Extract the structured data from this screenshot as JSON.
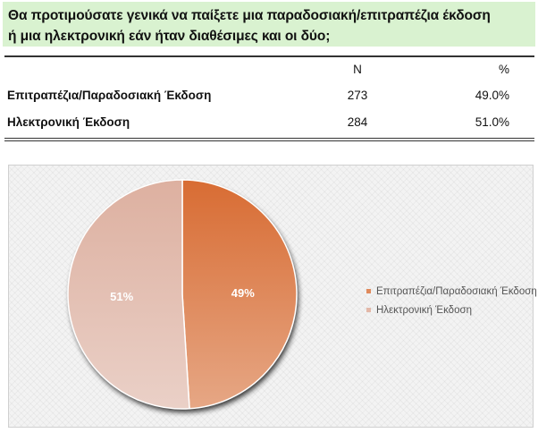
{
  "question": {
    "line1": "Θα προτιμούσατε γενικά να παίξετε μια παραδοσιακή/επιτραπέζια έκδοση",
    "line2": "ή μια ηλεκτρονική εάν ήταν διαθέσιμες και οι δύο;"
  },
  "table": {
    "headers": {
      "n": "N",
      "pct": "%"
    },
    "rows": [
      {
        "label": "Επιτραπέζια/Παραδοσιακή Έκδοση",
        "n": "273",
        "pct": "49.0%"
      },
      {
        "label": "Ηλεκτρονική Έκδοση",
        "n": "284",
        "pct": "51.0%"
      }
    ]
  },
  "chart_data": {
    "type": "pie",
    "categories": [
      "Επιτραπέζια/Παραδοσιακή Έκδοση",
      "Ηλεκτρονική Έκδοση"
    ],
    "values": [
      49,
      51
    ],
    "data_labels": [
      "49%",
      "51%"
    ],
    "colors": [
      "#e08a5c",
      "#e3b8a8"
    ],
    "legend_position": "right"
  }
}
